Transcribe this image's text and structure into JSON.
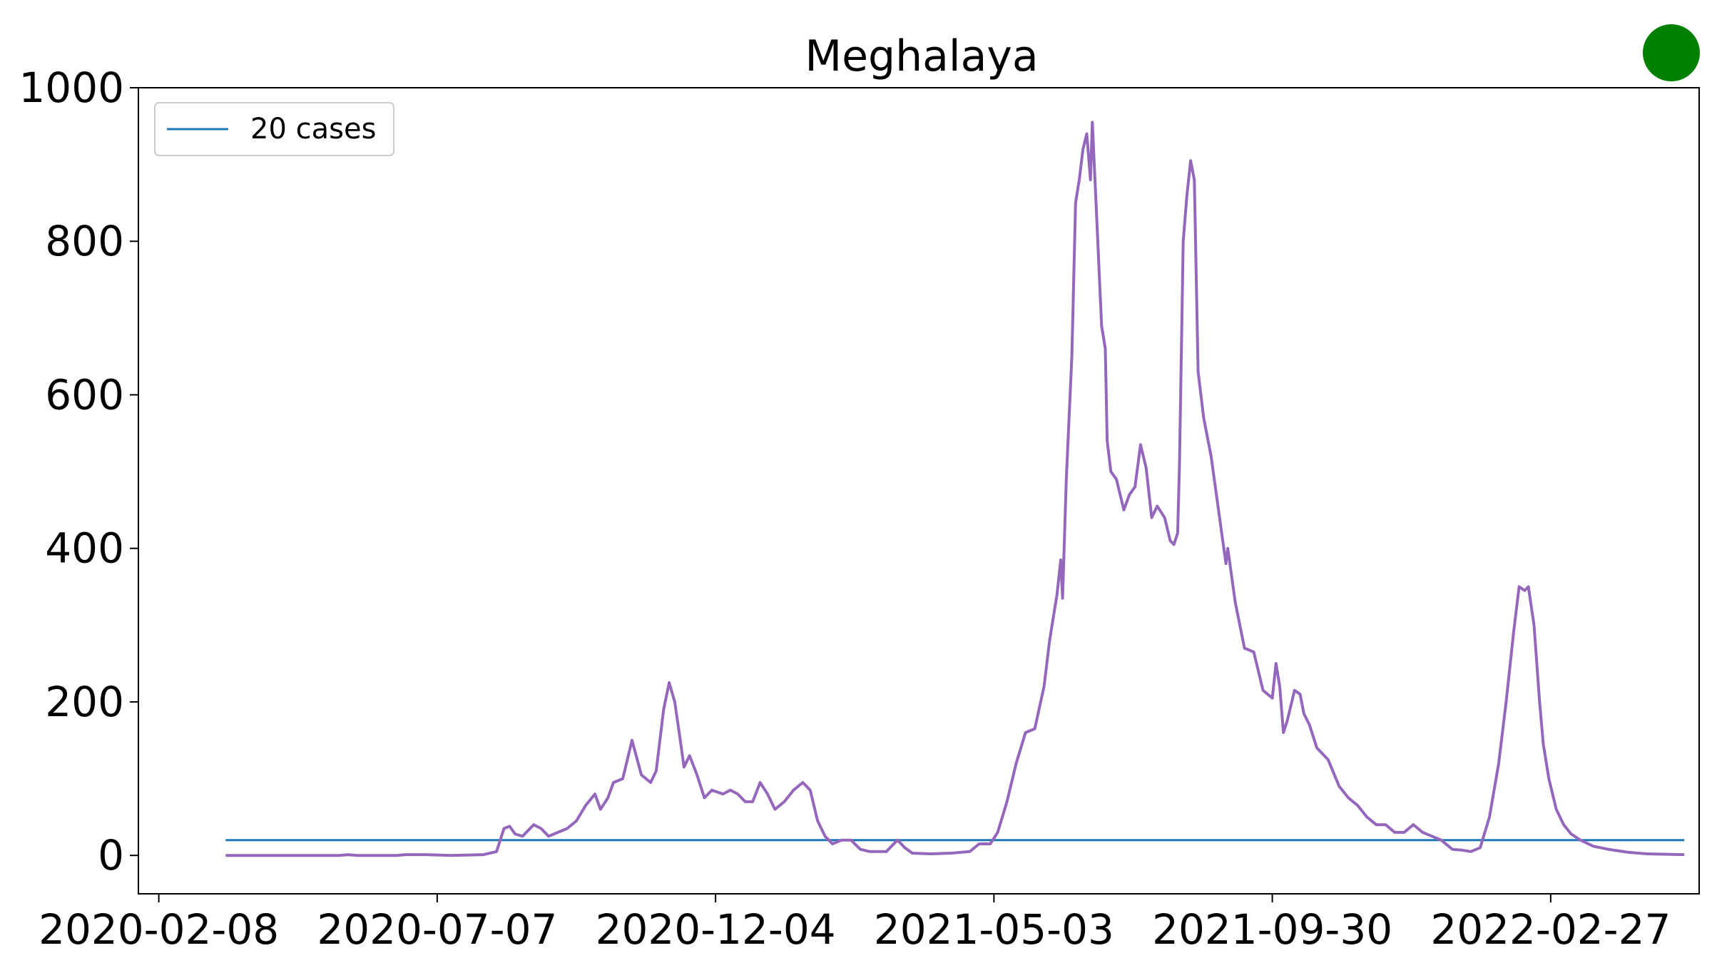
{
  "chart_data": {
    "type": "line",
    "title": "Meghalaya",
    "xlabel": "",
    "ylabel": "",
    "ylim": [
      -50,
      1000
    ],
    "yticks": [
      0,
      200,
      400,
      600,
      800,
      1000
    ],
    "ytick_labels": [
      "0",
      "200",
      "400",
      "600",
      "800",
      "1000"
    ],
    "xlim": [
      "2020-01-28",
      "2022-05-18"
    ],
    "xticks": [
      "2020-02-08",
      "2020-07-07",
      "2020-12-04",
      "2021-05-03",
      "2021-09-30",
      "2022-02-27"
    ],
    "xtick_labels": [
      "2020-02-08",
      "2020-07-07",
      "2020-12-04",
      "2021-05-03",
      "2021-09-30",
      "2022-02-27"
    ],
    "grid": false,
    "legend_position": "upper-left",
    "status_indicator_color": "#008000",
    "series": [
      {
        "name": "20 cases",
        "color": "#1f77b4",
        "kind": "reference",
        "points": [
          [
            "2020-03-15",
            20
          ],
          [
            "2022-05-10",
            20
          ]
        ]
      },
      {
        "color": "#9467bd",
        "kind": "cases",
        "points": [
          [
            "2020-03-15",
            0
          ],
          [
            "2020-05-01",
            0
          ],
          [
            "2020-05-15",
            0
          ],
          [
            "2020-05-20",
            1
          ],
          [
            "2020-05-25",
            0
          ],
          [
            "2020-06-15",
            0
          ],
          [
            "2020-06-20",
            1
          ],
          [
            "2020-07-01",
            1
          ],
          [
            "2020-07-15",
            0
          ],
          [
            "2020-08-01",
            1
          ],
          [
            "2020-08-08",
            5
          ],
          [
            "2020-08-12",
            35
          ],
          [
            "2020-08-15",
            38
          ],
          [
            "2020-08-18",
            28
          ],
          [
            "2020-08-22",
            25
          ],
          [
            "2020-08-28",
            40
          ],
          [
            "2020-09-01",
            35
          ],
          [
            "2020-09-05",
            25
          ],
          [
            "2020-09-10",
            30
          ],
          [
            "2020-09-15",
            35
          ],
          [
            "2020-09-20",
            45
          ],
          [
            "2020-09-25",
            65
          ],
          [
            "2020-09-30",
            80
          ],
          [
            "2020-10-03",
            60
          ],
          [
            "2020-10-07",
            75
          ],
          [
            "2020-10-10",
            95
          ],
          [
            "2020-10-15",
            100
          ],
          [
            "2020-10-20",
            150
          ],
          [
            "2020-10-25",
            105
          ],
          [
            "2020-10-30",
            95
          ],
          [
            "2020-11-02",
            110
          ],
          [
            "2020-11-06",
            190
          ],
          [
            "2020-11-09",
            225
          ],
          [
            "2020-11-12",
            200
          ],
          [
            "2020-11-15",
            150
          ],
          [
            "2020-11-17",
            115
          ],
          [
            "2020-11-20",
            130
          ],
          [
            "2020-11-24",
            105
          ],
          [
            "2020-11-28",
            75
          ],
          [
            "2020-12-02",
            85
          ],
          [
            "2020-12-08",
            80
          ],
          [
            "2020-12-12",
            85
          ],
          [
            "2020-12-16",
            80
          ],
          [
            "2020-12-20",
            70
          ],
          [
            "2020-12-24",
            70
          ],
          [
            "2020-12-28",
            95
          ],
          [
            "2021-01-01",
            80
          ],
          [
            "2021-01-05",
            60
          ],
          [
            "2021-01-10",
            70
          ],
          [
            "2021-01-15",
            85
          ],
          [
            "2021-01-20",
            95
          ],
          [
            "2021-01-24",
            85
          ],
          [
            "2021-01-28",
            45
          ],
          [
            "2021-02-01",
            25
          ],
          [
            "2021-02-05",
            15
          ],
          [
            "2021-02-10",
            20
          ],
          [
            "2021-02-15",
            20
          ],
          [
            "2021-02-20",
            8
          ],
          [
            "2021-02-25",
            5
          ],
          [
            "2021-03-02",
            5
          ],
          [
            "2021-03-06",
            5
          ],
          [
            "2021-03-12",
            20
          ],
          [
            "2021-03-16",
            10
          ],
          [
            "2021-03-20",
            3
          ],
          [
            "2021-03-30",
            2
          ],
          [
            "2021-04-10",
            3
          ],
          [
            "2021-04-20",
            5
          ],
          [
            "2021-04-25",
            15
          ],
          [
            "2021-05-01",
            15
          ],
          [
            "2021-05-05",
            30
          ],
          [
            "2021-05-10",
            70
          ],
          [
            "2021-05-15",
            120
          ],
          [
            "2021-05-20",
            160
          ],
          [
            "2021-05-25",
            165
          ],
          [
            "2021-05-30",
            220
          ],
          [
            "2021-06-02",
            280
          ],
          [
            "2021-06-06",
            340
          ],
          [
            "2021-06-08",
            385
          ],
          [
            "2021-06-09",
            335
          ],
          [
            "2021-06-11",
            490
          ],
          [
            "2021-06-14",
            650
          ],
          [
            "2021-06-16",
            850
          ],
          [
            "2021-06-18",
            880
          ],
          [
            "2021-06-20",
            920
          ],
          [
            "2021-06-22",
            940
          ],
          [
            "2021-06-24",
            880
          ],
          [
            "2021-06-25",
            955
          ],
          [
            "2021-06-27",
            850
          ],
          [
            "2021-06-30",
            690
          ],
          [
            "2021-07-02",
            660
          ],
          [
            "2021-07-03",
            540
          ],
          [
            "2021-07-05",
            500
          ],
          [
            "2021-07-08",
            490
          ],
          [
            "2021-07-12",
            450
          ],
          [
            "2021-07-15",
            470
          ],
          [
            "2021-07-18",
            480
          ],
          [
            "2021-07-21",
            535
          ],
          [
            "2021-07-24",
            505
          ],
          [
            "2021-07-27",
            440
          ],
          [
            "2021-07-30",
            455
          ],
          [
            "2021-08-03",
            440
          ],
          [
            "2021-08-06",
            410
          ],
          [
            "2021-08-08",
            405
          ],
          [
            "2021-08-10",
            420
          ],
          [
            "2021-08-11",
            510
          ],
          [
            "2021-08-13",
            800
          ],
          [
            "2021-08-15",
            860
          ],
          [
            "2021-08-17",
            905
          ],
          [
            "2021-08-19",
            880
          ],
          [
            "2021-08-21",
            630
          ],
          [
            "2021-08-24",
            570
          ],
          [
            "2021-08-28",
            520
          ],
          [
            "2021-09-01",
            450
          ],
          [
            "2021-09-05",
            380
          ],
          [
            "2021-09-06",
            400
          ],
          [
            "2021-09-10",
            330
          ],
          [
            "2021-09-15",
            270
          ],
          [
            "2021-09-20",
            265
          ],
          [
            "2021-09-25",
            215
          ],
          [
            "2021-09-30",
            205
          ],
          [
            "2021-10-02",
            250
          ],
          [
            "2021-10-04",
            220
          ],
          [
            "2021-10-06",
            160
          ],
          [
            "2021-10-08",
            175
          ],
          [
            "2021-10-12",
            215
          ],
          [
            "2021-10-15",
            210
          ],
          [
            "2021-10-17",
            185
          ],
          [
            "2021-10-20",
            170
          ],
          [
            "2021-10-24",
            140
          ],
          [
            "2021-10-30",
            125
          ],
          [
            "2021-11-05",
            90
          ],
          [
            "2021-11-10",
            75
          ],
          [
            "2021-11-15",
            65
          ],
          [
            "2021-11-20",
            50
          ],
          [
            "2021-11-25",
            40
          ],
          [
            "2021-11-30",
            40
          ],
          [
            "2021-12-05",
            30
          ],
          [
            "2021-12-10",
            30
          ],
          [
            "2021-12-15",
            40
          ],
          [
            "2021-12-20",
            30
          ],
          [
            "2021-12-25",
            25
          ],
          [
            "2021-12-30",
            20
          ],
          [
            "2022-01-05",
            8
          ],
          [
            "2022-01-10",
            7
          ],
          [
            "2022-01-15",
            5
          ],
          [
            "2022-01-20",
            10
          ],
          [
            "2022-01-25",
            50
          ],
          [
            "2022-01-30",
            120
          ],
          [
            "2022-02-03",
            200
          ],
          [
            "2022-02-07",
            290
          ],
          [
            "2022-02-10",
            350
          ],
          [
            "2022-02-13",
            345
          ],
          [
            "2022-02-15",
            350
          ],
          [
            "2022-02-18",
            300
          ],
          [
            "2022-02-21",
            200
          ],
          [
            "2022-02-23",
            145
          ],
          [
            "2022-02-26",
            100
          ],
          [
            "2022-03-02",
            60
          ],
          [
            "2022-03-06",
            40
          ],
          [
            "2022-03-10",
            28
          ],
          [
            "2022-03-15",
            20
          ],
          [
            "2022-03-22",
            12
          ],
          [
            "2022-03-30",
            8
          ],
          [
            "2022-04-10",
            4
          ],
          [
            "2022-04-20",
            2
          ],
          [
            "2022-05-10",
            1
          ]
        ]
      }
    ]
  }
}
